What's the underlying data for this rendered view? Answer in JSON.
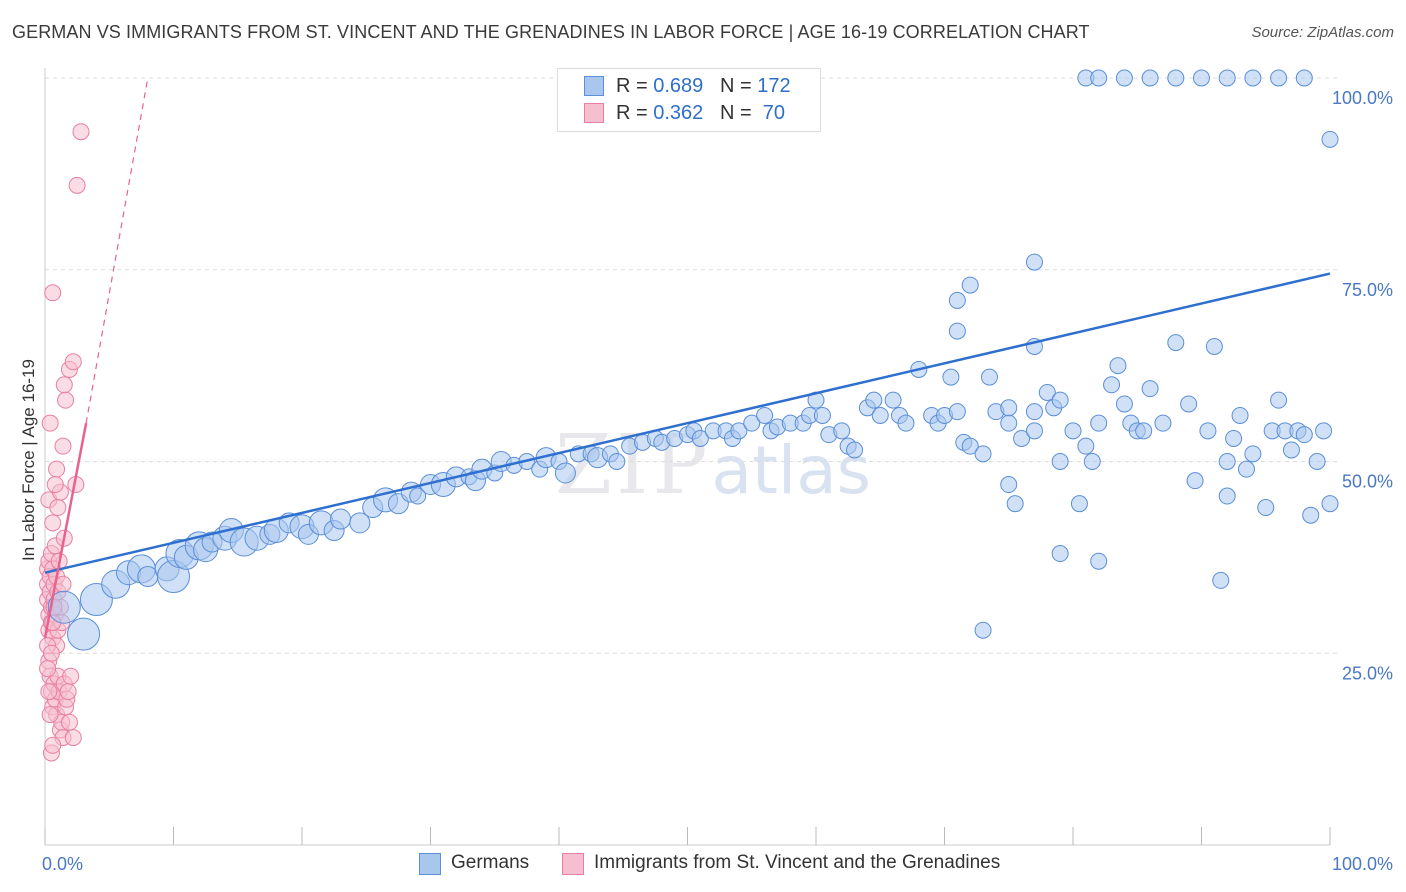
{
  "title": "GERMAN VS IMMIGRANTS FROM ST. VINCENT AND THE GRENADINES IN LABOR FORCE | AGE 16-19 CORRELATION CHART",
  "source": "Source: ZipAtlas.com",
  "watermark": {
    "zip": "ZIP",
    "atlas": "atlas"
  },
  "legend": {
    "series": [
      {
        "r_label": "R = ",
        "r_value": "0.689",
        "n_label": "N = ",
        "n_value": "172"
      },
      {
        "r_label": "R = ",
        "r_value": "0.362",
        "n_label": "N = ",
        "n_value": " 70"
      }
    ]
  },
  "colors": {
    "blue_fill": "#a9c6ee",
    "blue_stroke": "#5b8fd8",
    "blue_line": "#2f6fd0",
    "pink_fill": "#f6bfd0",
    "pink_stroke": "#e97fa2",
    "pink_line": "#e8628f",
    "grid": "#dcdcdc",
    "tick_text": "#4a78c2"
  },
  "chart_data": {
    "type": "scatter",
    "title": "GERMAN VS IMMIGRANTS FROM ST. VINCENT AND THE GRENADINES IN LABOR FORCE | AGE 16-19 CORRELATION CHART",
    "xlabel": "",
    "ylabel": "In Labor Force | Age 16-19",
    "xlim": [
      0,
      100
    ],
    "ylim": [
      0,
      100
    ],
    "x_tick_labels": [
      "0.0%",
      "100.0%"
    ],
    "y_ticks": [
      25,
      50,
      75,
      100
    ],
    "y_tick_labels": [
      "25.0%",
      "50.0%",
      "75.0%",
      "100.0%"
    ],
    "grid": true,
    "legend_position": "top-center",
    "series": [
      {
        "name": "Germans",
        "color": "#a9c6ee",
        "trend": {
          "x0": 0,
          "y0": 35.5,
          "x1": 100,
          "y1": 74.5
        },
        "points": [
          [
            1.5,
            31,
            16
          ],
          [
            3,
            27.5,
            16
          ],
          [
            4,
            32,
            16
          ],
          [
            5.5,
            34,
            14
          ],
          [
            6.5,
            35.5,
            12
          ],
          [
            7.5,
            36,
            14
          ],
          [
            8,
            35,
            10
          ],
          [
            9.5,
            36,
            12
          ],
          [
            10,
            35,
            16
          ],
          [
            10.5,
            38,
            14
          ],
          [
            11,
            37.5,
            12
          ],
          [
            12,
            39,
            14
          ],
          [
            12.5,
            38.5,
            12
          ],
          [
            13,
            39.5,
            10
          ],
          [
            14,
            40,
            12
          ],
          [
            14.5,
            41,
            12
          ],
          [
            15.5,
            39.5,
            14
          ],
          [
            16.5,
            40,
            12
          ],
          [
            17.5,
            40.5,
            10
          ],
          [
            18,
            41,
            12
          ],
          [
            19,
            42,
            10
          ],
          [
            20,
            41.5,
            12
          ],
          [
            20.5,
            40.5,
            10
          ],
          [
            21.5,
            42,
            12
          ],
          [
            22.5,
            41,
            10
          ],
          [
            23,
            42.5,
            10
          ],
          [
            24.5,
            42,
            10
          ],
          [
            25.5,
            44,
            10
          ],
          [
            26.5,
            45,
            12
          ],
          [
            27.5,
            44.5,
            10
          ],
          [
            28.5,
            46,
            10
          ],
          [
            29,
            45.5,
            8
          ],
          [
            30,
            47,
            10
          ],
          [
            31,
            47,
            12
          ],
          [
            32,
            48,
            10
          ],
          [
            33,
            48,
            8
          ],
          [
            33.5,
            47.5,
            10
          ],
          [
            34,
            49,
            10
          ],
          [
            35,
            48.5,
            8
          ],
          [
            35.5,
            50,
            10
          ],
          [
            36.5,
            49.5,
            8
          ],
          [
            37.5,
            50,
            8
          ],
          [
            38.5,
            49,
            8
          ],
          [
            39,
            50.5,
            10
          ],
          [
            40,
            50,
            8
          ],
          [
            40.5,
            48.5,
            10
          ],
          [
            41.5,
            51,
            8
          ],
          [
            42.5,
            51,
            8
          ],
          [
            43,
            50.5,
            10
          ],
          [
            44,
            51,
            8
          ],
          [
            44.5,
            50,
            8
          ],
          [
            45.5,
            52,
            8
          ],
          [
            46.5,
            52.5,
            8
          ],
          [
            47.5,
            53,
            8
          ],
          [
            48,
            52.5,
            8
          ],
          [
            49,
            53,
            8
          ],
          [
            50,
            53.5,
            8
          ],
          [
            50.5,
            54,
            8
          ],
          [
            51,
            53,
            8
          ],
          [
            52,
            54,
            8
          ],
          [
            53,
            54,
            8
          ],
          [
            53.5,
            53,
            8
          ],
          [
            54,
            54,
            8
          ],
          [
            55,
            55,
            8
          ],
          [
            56,
            56,
            8
          ],
          [
            56.5,
            54,
            8
          ],
          [
            57,
            54.5,
            8
          ],
          [
            58,
            55,
            8
          ],
          [
            59,
            55,
            8
          ],
          [
            59.5,
            56,
            8
          ],
          [
            60,
            58,
            8
          ],
          [
            60.5,
            56,
            8
          ],
          [
            61,
            53.5,
            8
          ],
          [
            62,
            54,
            8
          ],
          [
            62.5,
            52,
            8
          ],
          [
            63,
            51.5,
            8
          ],
          [
            64,
            57,
            8
          ],
          [
            64.5,
            58,
            8
          ],
          [
            65,
            56,
            8
          ],
          [
            66,
            58,
            8
          ],
          [
            66.5,
            56,
            8
          ],
          [
            67,
            55,
            8
          ],
          [
            68,
            62,
            8
          ],
          [
            69,
            56,
            8
          ],
          [
            69.5,
            55,
            8
          ],
          [
            70,
            56,
            8
          ],
          [
            70.5,
            61,
            8
          ],
          [
            71,
            56.5,
            8
          ],
          [
            71.5,
            52.5,
            8
          ],
          [
            72,
            52,
            8
          ],
          [
            73,
            51,
            8
          ],
          [
            73.5,
            61,
            8
          ],
          [
            74,
            56.5,
            8
          ],
          [
            75,
            55,
            8
          ],
          [
            75.5,
            44.5,
            8
          ],
          [
            76,
            53,
            8
          ],
          [
            77,
            56.5,
            8
          ],
          [
            78,
            59,
            8
          ],
          [
            78.5,
            57,
            8
          ],
          [
            79,
            58,
            8
          ],
          [
            80,
            54,
            8
          ],
          [
            80.5,
            44.5,
            8
          ],
          [
            81,
            52,
            8
          ],
          [
            81.5,
            50,
            8
          ],
          [
            83,
            60,
            8
          ],
          [
            83.5,
            62.5,
            8
          ],
          [
            84,
            57.5,
            8
          ],
          [
            84.5,
            55,
            8
          ],
          [
            85,
            54,
            8
          ],
          [
            85.5,
            54,
            8
          ],
          [
            86,
            59.5,
            8
          ],
          [
            87,
            55,
            8
          ],
          [
            88,
            65.5,
            8
          ],
          [
            89,
            57.5,
            8
          ],
          [
            89.5,
            47.5,
            8
          ],
          [
            90.5,
            54,
            8
          ],
          [
            91,
            65,
            8
          ],
          [
            91.5,
            34.5,
            8
          ],
          [
            92,
            45.5,
            8
          ],
          [
            92.5,
            53,
            8
          ],
          [
            93,
            56,
            8
          ],
          [
            93.5,
            49,
            8
          ],
          [
            94,
            51,
            8
          ],
          [
            95,
            44,
            8
          ],
          [
            95.5,
            54,
            8
          ],
          [
            96,
            58,
            8
          ],
          [
            96.5,
            54,
            8
          ],
          [
            97,
            51.5,
            8
          ],
          [
            97.5,
            54,
            8
          ],
          [
            98,
            53.5,
            8
          ],
          [
            98.5,
            43,
            8
          ],
          [
            99,
            50,
            8
          ],
          [
            99.5,
            54,
            8
          ],
          [
            100,
            44.5,
            8
          ]
        ]
      },
      {
        "name": "Immigrants from St. Vincent and the Grenadines",
        "color": "#f6bfd0",
        "trend": {
          "x0": 0,
          "y0": 27,
          "x1": 3.2,
          "y1": 55
        },
        "trend_dashed": {
          "x0": 3.2,
          "y0": 55,
          "x1": 8,
          "y1": 100
        },
        "points": [
          [
            0.2,
            36
          ],
          [
            0.2,
            34
          ],
          [
            0.2,
            32
          ],
          [
            0.3,
            30
          ],
          [
            0.3,
            28
          ],
          [
            0.3,
            37
          ],
          [
            0.4,
            33
          ],
          [
            0.4,
            35
          ],
          [
            0.5,
            31
          ],
          [
            0.5,
            29
          ],
          [
            0.5,
            38
          ],
          [
            0.6,
            36
          ],
          [
            0.6,
            27
          ],
          [
            0.7,
            34
          ],
          [
            0.7,
            32
          ],
          [
            0.8,
            30
          ],
          [
            0.8,
            39
          ],
          [
            0.9,
            35
          ],
          [
            0.9,
            26
          ],
          [
            1.0,
            33
          ],
          [
            1.0,
            28
          ],
          [
            1.1,
            37
          ],
          [
            1.2,
            31
          ],
          [
            1.3,
            29
          ],
          [
            1.4,
            34
          ],
          [
            1.5,
            40
          ],
          [
            0.3,
            24
          ],
          [
            0.4,
            22
          ],
          [
            0.5,
            20
          ],
          [
            0.6,
            18
          ],
          [
            0.7,
            21
          ],
          [
            0.8,
            19
          ],
          [
            0.9,
            17
          ],
          [
            1.0,
            22
          ],
          [
            1.1,
            20
          ],
          [
            1.2,
            15
          ],
          [
            1.3,
            16
          ],
          [
            1.4,
            14
          ],
          [
            1.5,
            21
          ],
          [
            1.6,
            18
          ],
          [
            1.7,
            19
          ],
          [
            1.8,
            20
          ],
          [
            1.9,
            16
          ],
          [
            2.0,
            22
          ],
          [
            2.2,
            14
          ],
          [
            0.5,
            12
          ],
          [
            0.6,
            13
          ],
          [
            0.3,
            45
          ],
          [
            0.6,
            42
          ],
          [
            0.9,
            49
          ],
          [
            1.2,
            46
          ],
          [
            1.4,
            52
          ],
          [
            1.6,
            58
          ],
          [
            1.9,
            62
          ],
          [
            2.2,
            63
          ],
          [
            0.6,
            72
          ],
          [
            2.5,
            86
          ],
          [
            2.8,
            93
          ],
          [
            0.4,
            55
          ],
          [
            0.8,
            47
          ],
          [
            1.0,
            44
          ],
          [
            1.5,
            60
          ],
          [
            2.4,
            47
          ],
          [
            0.2,
            26
          ],
          [
            0.2,
            23
          ],
          [
            0.3,
            20
          ],
          [
            0.4,
            17
          ],
          [
            0.5,
            25
          ],
          [
            0.6,
            29
          ],
          [
            0.7,
            31
          ]
        ]
      }
    ],
    "top_blue_points": [
      [
        81,
        100
      ],
      [
        82,
        100
      ],
      [
        84,
        100
      ],
      [
        86,
        100
      ],
      [
        88,
        100
      ],
      [
        90,
        100
      ],
      [
        92,
        100
      ],
      [
        94,
        100
      ],
      [
        96,
        100
      ],
      [
        98,
        100
      ],
      [
        100,
        92
      ]
    ],
    "extra_blue_points": [
      [
        77,
        76
      ],
      [
        72,
        73
      ],
      [
        71,
        71
      ],
      [
        71,
        67
      ],
      [
        77,
        65
      ],
      [
        75,
        57
      ],
      [
        82,
        55
      ],
      [
        77,
        54
      ],
      [
        79,
        50
      ],
      [
        75,
        47
      ],
      [
        82,
        37
      ],
      [
        79,
        38
      ],
      [
        73,
        28
      ],
      [
        92,
        50
      ]
    ]
  }
}
